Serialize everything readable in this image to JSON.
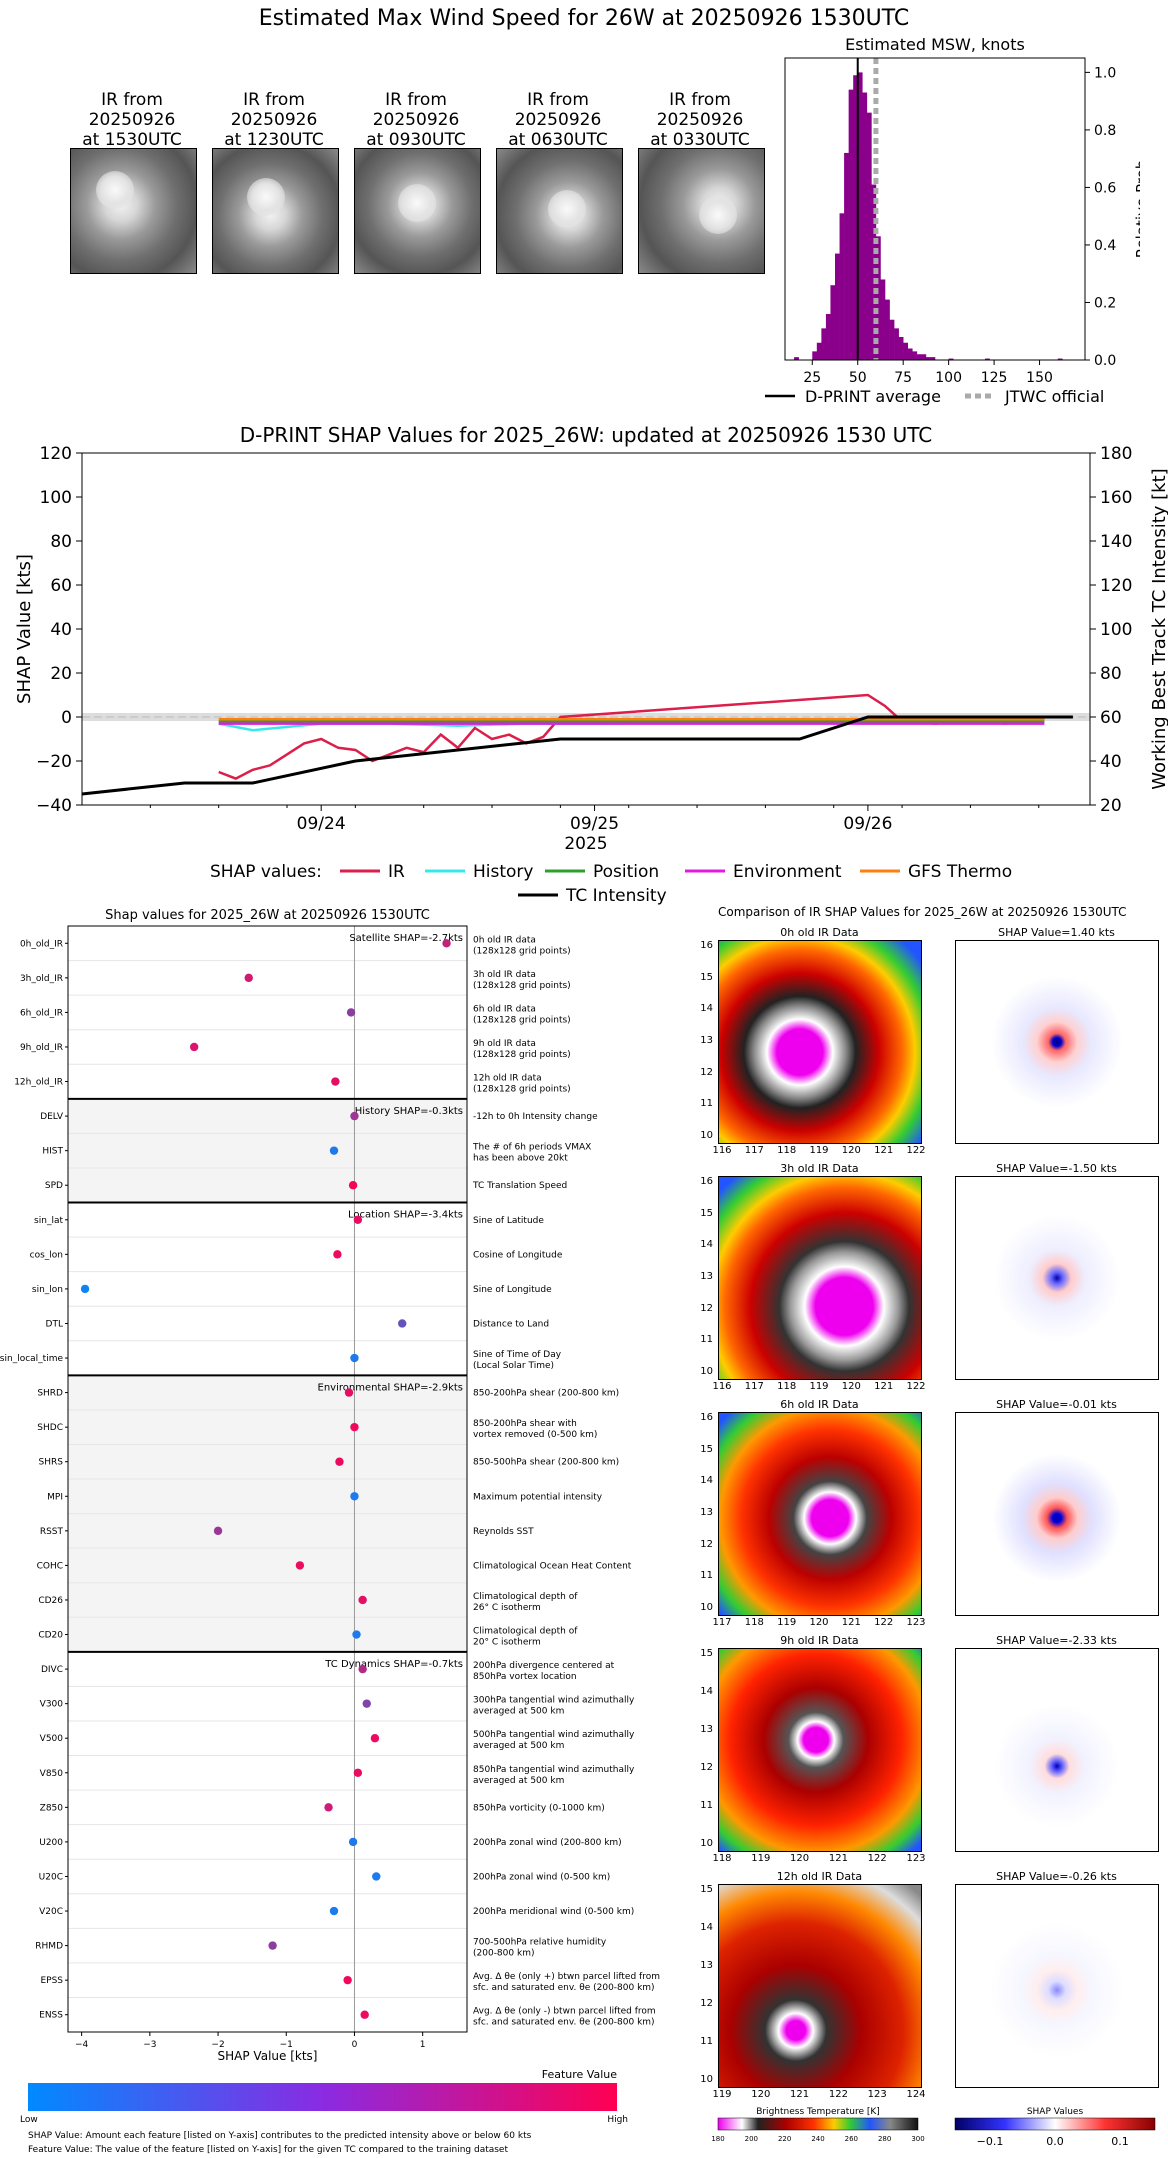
{
  "top": {
    "title": "Estimated Max Wind Speed for 26W at 20250926 1530UTC",
    "ir_panels": [
      {
        "line1": "IR from",
        "line2": "20250926",
        "line3": "at 1530UTC"
      },
      {
        "line1": "IR from",
        "line2": "20250926",
        "line3": "at 1230UTC"
      },
      {
        "line1": "IR from",
        "line2": "20250926",
        "line3": "at 0930UTC"
      },
      {
        "line1": "IR from",
        "line2": "20250926",
        "line3": "at 0630UTC"
      },
      {
        "line1": "IR from",
        "line2": "20250926",
        "line3": "at 0330UTC"
      }
    ],
    "hist_title": "Estimated MSW, knots",
    "hist_ylabel": "Relative Prob",
    "legend_avg": "D-PRINT average",
    "legend_jtwc": "JTWC official"
  },
  "mid": {
    "title": "D-PRINT SHAP Values for 2025_26W: updated at 20250926 1530 UTC",
    "ylabel_left": "SHAP Value [kts]",
    "ylabel_right": "Working Best Track TC Intensity [kt]",
    "xlabel": "2025",
    "legend_prefix": "SHAP values:",
    "legend": [
      "IR",
      "History",
      "Position",
      "Environment",
      "GFS Thermo",
      "TC Intensity"
    ]
  },
  "bottom_left": {
    "title": "Shap values for 2025_26W at 20250926 1530UTC",
    "xlabel": "SHAP Value [kts]",
    "colorbar_title": "Feature Value",
    "colorbar_low": "Low",
    "colorbar_high": "High",
    "note1": "SHAP Value: Amount each feature [listed on Y-axis] contributes to the predicted intensity above or below 60 kts",
    "note2": "Feature Value: The value of the feature [listed on Y-axis] for the given TC compared to the training dataset",
    "groups": [
      "Satellite SHAP=-2.7kts",
      "History SHAP=-0.3kts",
      "Location SHAP=-3.4kts",
      "Environmental SHAP=-2.9kts",
      "TC Dynamics SHAP=-0.7kts"
    ]
  },
  "bottom_right": {
    "title": "Comparison of IR SHAP Values for 2025_26W at 20250926 1530UTC",
    "rows": [
      {
        "ir_title": "0h old IR Data",
        "shap_title": "SHAP Value=1.40 kts",
        "yticks": [
          "16",
          "15",
          "14",
          "13",
          "12",
          "11",
          "10"
        ],
        "xticks": [
          "116",
          "117",
          "118",
          "119",
          "120",
          "121",
          "122"
        ]
      },
      {
        "ir_title": "3h old IR Data",
        "shap_title": "SHAP Value=-1.50 kts",
        "yticks": [
          "16",
          "15",
          "14",
          "13",
          "12",
          "11",
          "10"
        ],
        "xticks": [
          "116",
          "117",
          "118",
          "119",
          "120",
          "121",
          "122"
        ]
      },
      {
        "ir_title": "6h old IR Data",
        "shap_title": "SHAP Value=-0.01 kts",
        "yticks": [
          "16",
          "15",
          "14",
          "13",
          "12",
          "11",
          "10"
        ],
        "xticks": [
          "117",
          "118",
          "119",
          "120",
          "121",
          "122",
          "123"
        ]
      },
      {
        "ir_title": "9h old IR Data",
        "shap_title": "SHAP Value=-2.33 kts",
        "yticks": [
          "15",
          "14",
          "13",
          "12",
          "11",
          "10"
        ],
        "xticks": [
          "118",
          "119",
          "120",
          "121",
          "122",
          "123"
        ]
      },
      {
        "ir_title": "12h old IR Data",
        "shap_title": "SHAP Value=-0.26 kts",
        "yticks": [
          "15",
          "14",
          "13",
          "12",
          "11",
          "10"
        ],
        "xticks": [
          "119",
          "120",
          "121",
          "122",
          "123",
          "124"
        ]
      }
    ],
    "cbar_bt_title": "Brightness Temperature [K]",
    "cbar_bt_ticks": [
      "180",
      "200",
      "220",
      "240",
      "260",
      "280",
      "300"
    ],
    "cbar_shap_title": "SHAP Values",
    "cbar_shap_ticks": [
      "−0.1",
      "0.0",
      "0.1"
    ]
  },
  "chart_data": [
    {
      "type": "bar",
      "title": "Estimated MSW, knots",
      "ylabel": "Relative Prob",
      "xlim": [
        10,
        175
      ],
      "ylim": [
        0,
        1.05
      ],
      "xticks": [
        25,
        50,
        75,
        100,
        125,
        150
      ],
      "yticks": [
        0.0,
        0.2,
        0.4,
        0.6,
        0.8,
        1.0
      ],
      "bin_width": 2.5,
      "bins_start": [
        15,
        25,
        27.5,
        30,
        32.5,
        35,
        37.5,
        40,
        42.5,
        45,
        47.5,
        50,
        52.5,
        55,
        57.5,
        60,
        62.5,
        65,
        67.5,
        70,
        72.5,
        75,
        77.5,
        80,
        82.5,
        85,
        87.5,
        90,
        100,
        120,
        160
      ],
      "values": [
        0.01,
        0.03,
        0.06,
        0.11,
        0.16,
        0.26,
        0.37,
        0.51,
        0.72,
        0.94,
        0.99,
        1.0,
        0.93,
        0.86,
        0.61,
        0.43,
        0.28,
        0.21,
        0.14,
        0.11,
        0.08,
        0.06,
        0.04,
        0.03,
        0.02,
        0.02,
        0.01,
        0.01,
        0.005,
        0.005,
        0.005
      ],
      "dprint_average": 50,
      "jtwc_official": 60
    },
    {
      "type": "line",
      "title": "D-PRINT SHAP Values for 2025_26W: updated at 20250926 1530 UTC",
      "xlabel": "2025",
      "ylabel": "SHAP Value [kts]",
      "y2label": "Working Best Track TC Intensity [kt]",
      "ylim": [
        -40,
        120
      ],
      "y2lim": [
        20,
        180
      ],
      "xlim_days": [
        "2025-09-23 03:00",
        "2025-09-26 19:30"
      ],
      "xticks": [
        "09/24",
        "09/25",
        "09/26"
      ],
      "series": [
        {
          "name": "IR",
          "color": "#dc1e4a",
          "x": [
            "09/23 15:00",
            "09/23 16:30",
            "09/23 18:00",
            "09/23 19:30",
            "09/23 21:00",
            "09/23 22:30",
            "09/24 00:00",
            "09/24 01:30",
            "09/24 03:00",
            "09/24 04:30",
            "09/24 06:00",
            "09/24 07:30",
            "09/24 09:00",
            "09/24 10:30",
            "09/24 12:00",
            "09/24 13:30",
            "09/24 15:00",
            "09/24 16:30",
            "09/24 18:00",
            "09/24 19:30",
            "09/24 21:00",
            "09/26 00:00",
            "09/26 01:30",
            "09/26 03:00",
            "09/26 06:00",
            "09/26 09:00",
            "09/26 12:00",
            "09/26 15:30"
          ],
          "y": [
            -25,
            -28,
            -24,
            -22,
            -17,
            -12,
            -10,
            -14,
            -15,
            -20,
            -17,
            -14,
            -16,
            -8,
            -14,
            -5,
            -10,
            -8,
            -12,
            -9,
            0,
            10,
            5,
            -2,
            -3,
            -1,
            -3,
            -1
          ]
        },
        {
          "name": "History",
          "color": "#38e8e8",
          "x": [
            "09/23 15:00",
            "09/23 18:00",
            "09/24 00:00",
            "09/24 06:00",
            "09/24 12:00",
            "09/24 18:00",
            "09/25 00:00",
            "09/26 00:00",
            "09/26 15:30"
          ],
          "y": [
            -3,
            -6,
            -3,
            -3,
            -4,
            -3,
            -3,
            -2,
            -2
          ]
        },
        {
          "name": "Position",
          "color": "#2ca02c",
          "x": [
            "09/23 15:00",
            "09/26 15:30"
          ],
          "y": [
            -2,
            -2
          ]
        },
        {
          "name": "Environment",
          "color": "#e21be2",
          "x": [
            "09/23 15:00",
            "09/24 12:00",
            "09/25 12:00",
            "09/26 15:30"
          ],
          "y": [
            -3,
            -3,
            -3,
            -3
          ]
        },
        {
          "name": "GFS Thermo",
          "color": "#ff7f0e",
          "x": [
            "09/23 15:00",
            "09/26 15:30"
          ],
          "y": [
            -1,
            -1
          ]
        },
        {
          "name": "TC Intensity",
          "color": "#000000",
          "axis": "right",
          "x": [
            "09/23 03:00",
            "09/23 12:00",
            "09/23 18:00",
            "09/24 03:00",
            "09/24 12:00",
            "09/24 21:00",
            "09/25 18:00",
            "09/26 00:00",
            "09/26 18:00"
          ],
          "y": [
            25,
            30,
            30,
            40,
            45,
            50,
            50,
            60,
            60
          ]
        }
      ]
    },
    {
      "type": "scatter",
      "title": "Shap values for 2025_26W at 20250926 1530UTC",
      "xlabel": "SHAP Value [kts]",
      "xlim": [
        -4.2,
        1.65
      ],
      "xticks": [
        "−4",
        "−3",
        "−2",
        "−1",
        "0",
        "1"
      ],
      "features": [
        {
          "name": "0h_old_IR",
          "desc1": "0h old IR data",
          "desc2": "(128x128 grid points)",
          "shap": 1.35,
          "fv": 0.75
        },
        {
          "name": "3h_old_IR",
          "desc1": "3h old IR data",
          "desc2": "(128x128 grid points)",
          "shap": -1.55,
          "fv": 0.82
        },
        {
          "name": "6h_old_IR",
          "desc1": "6h old IR data",
          "desc2": "(128x128 grid points)",
          "shap": -0.05,
          "fv": 0.55
        },
        {
          "name": "9h_old_IR",
          "desc1": "9h old IR data",
          "desc2": "(128x128 grid points)",
          "shap": -2.35,
          "fv": 0.85
        },
        {
          "name": "12h_old_IR",
          "desc1": "12h old IR data",
          "desc2": "(128x128 grid points)",
          "shap": -0.28,
          "fv": 0.9
        },
        {
          "name": "DELV",
          "desc1": "-12h to 0h Intensity change",
          "desc2": "",
          "shap": 0.0,
          "fv": 0.62
        },
        {
          "name": "HIST",
          "desc1": "The # of 6h periods VMAX",
          "desc2": "has been above 20kt",
          "shap": -0.3,
          "fv": 0.12
        },
        {
          "name": "SPD",
          "desc1": "TC Translation Speed",
          "desc2": "",
          "shap": -0.02,
          "fv": 0.95
        },
        {
          "name": "sin_lat",
          "desc1": "Sine of Latitude",
          "desc2": "",
          "shap": 0.05,
          "fv": 0.9
        },
        {
          "name": "cos_lon",
          "desc1": "Cosine of Longitude",
          "desc2": "",
          "shap": -0.25,
          "fv": 0.92
        },
        {
          "name": "sin_lon",
          "desc1": "Sine of Longitude",
          "desc2": "",
          "shap": -3.95,
          "fv": 0.05
        },
        {
          "name": "DTL",
          "desc1": "Distance to Land",
          "desc2": "",
          "shap": 0.7,
          "fv": 0.4
        },
        {
          "name": "sin_local_time",
          "desc1": "Sine of Time of Day",
          "desc2": "(Local Solar Time)",
          "shap": 0.0,
          "fv": 0.12
        },
        {
          "name": "SHRD",
          "desc1": "850-200hPa shear (200-800 km)",
          "desc2": "",
          "shap": -0.08,
          "fv": 0.9
        },
        {
          "name": "SHDC",
          "desc1": "850-200hPa shear with",
          "desc2": "vortex removed (0-500 km)",
          "shap": 0.0,
          "fv": 0.95
        },
        {
          "name": "SHRS",
          "desc1": "850-500hPa shear (200-800 km)",
          "desc2": "",
          "shap": -0.22,
          "fv": 0.93
        },
        {
          "name": "MPI",
          "desc1": "Maximum potential intensity",
          "desc2": "",
          "shap": 0.0,
          "fv": 0.1
        },
        {
          "name": "RSST",
          "desc1": "Reynolds SST",
          "desc2": "",
          "shap": -2.0,
          "fv": 0.6
        },
        {
          "name": "COHC",
          "desc1": "Climatological Ocean Heat Content",
          "desc2": "",
          "shap": -0.8,
          "fv": 0.92
        },
        {
          "name": "CD26",
          "desc1": "Climatological depth of",
          "desc2": "26° C isotherm",
          "shap": 0.12,
          "fv": 0.9
        },
        {
          "name": "CD20",
          "desc1": "Climatological depth of",
          "desc2": "20° C isotherm",
          "shap": 0.03,
          "fv": 0.1
        },
        {
          "name": "DIVC",
          "desc1": "200hPa divergence centered at",
          "desc2": "850hPa vortex location",
          "shap": 0.12,
          "fv": 0.7
        },
        {
          "name": "V300",
          "desc1": "300hPa tangential wind azimuthally",
          "desc2": "averaged at 500 km",
          "shap": 0.18,
          "fv": 0.5
        },
        {
          "name": "V500",
          "desc1": "500hPa tangential wind azimuthally",
          "desc2": "averaged at 500 km",
          "shap": 0.3,
          "fv": 0.92
        },
        {
          "name": "V850",
          "desc1": "850hPa tangential wind azimuthally",
          "desc2": "averaged at 500 km",
          "shap": 0.05,
          "fv": 0.92
        },
        {
          "name": "Z850",
          "desc1": "850hPa vorticity (0-1000 km)",
          "desc2": "",
          "shap": -0.38,
          "fv": 0.8
        },
        {
          "name": "U200",
          "desc1": "200hPa zonal wind (200-800 km)",
          "desc2": "",
          "shap": -0.02,
          "fv": 0.12
        },
        {
          "name": "U20C",
          "desc1": "200hPa zonal wind (0-500 km)",
          "desc2": "",
          "shap": 0.32,
          "fv": 0.1
        },
        {
          "name": "V20C",
          "desc1": "200hPa meridional wind (0-500 km)",
          "desc2": "",
          "shap": -0.3,
          "fv": 0.1
        },
        {
          "name": "RHMD",
          "desc1": "700-500hPa relative humidity",
          "desc2": "(200-800 km)",
          "shap": -1.2,
          "fv": 0.55
        },
        {
          "name": "EPSS",
          "desc1": "Avg. Δ θe (only +) btwn parcel lifted from",
          "desc2": "sfc. and saturated env. θe (200-800 km)",
          "shap": -0.1,
          "fv": 0.95
        },
        {
          "name": "ENSS",
          "desc1": "Avg. Δ θe (only -) btwn parcel lifted from",
          "desc2": "sfc. and saturated env. θe (200-800 km)",
          "shap": 0.15,
          "fv": 0.92
        }
      ]
    }
  ]
}
